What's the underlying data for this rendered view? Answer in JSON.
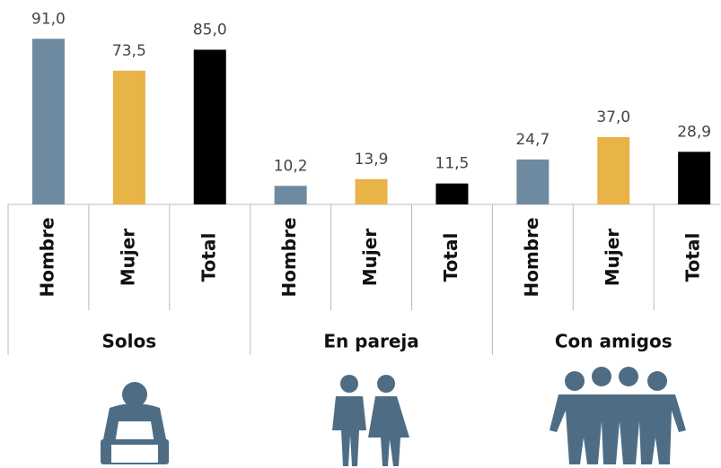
{
  "chart_data": {
    "type": "bar",
    "categories": [
      "Solos",
      "En pareja",
      "Con amigos"
    ],
    "series": [
      {
        "name": "Hombre",
        "color": "#6e8aa0",
        "values": [
          91.0,
          10.2,
          24.7
        ],
        "value_labels": [
          "91,0",
          "10,2",
          "24,7"
        ]
      },
      {
        "name": "Mujer",
        "color": "#e8b347",
        "values": [
          73.5,
          13.9,
          37.0
        ],
        "value_labels": [
          "73,5",
          "13,9",
          "37,0"
        ]
      },
      {
        "name": "Total",
        "color": "#000000",
        "values": [
          85.0,
          11.5,
          28.9
        ],
        "value_labels": [
          "85,0",
          "11,5",
          "28,9"
        ]
      }
    ],
    "ylim": [
      0,
      100
    ]
  }
}
